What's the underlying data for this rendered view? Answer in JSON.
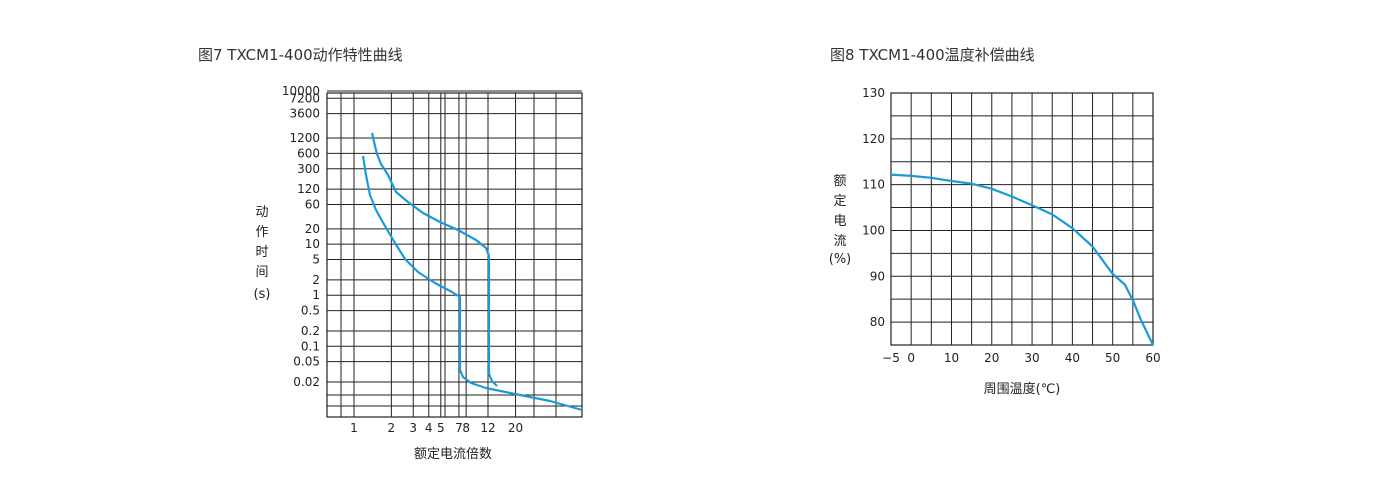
{
  "chart_data": [
    {
      "type": "line",
      "title": "图7 TXCM1-400动作特性曲线",
      "xlabel": "额定电流倍数",
      "ylabel": [
        "动",
        "作",
        "时",
        "间",
        "(s)"
      ],
      "x_tick_labels": [
        "1",
        "2",
        "3",
        "4",
        "5",
        "7",
        "8",
        "12",
        "20"
      ],
      "y_tick_labels": [
        "10000",
        "7200",
        "3600",
        "1200",
        "600",
        "300",
        "120",
        "60",
        "20",
        "10",
        "5",
        "2",
        "1",
        "0.5",
        "0.2",
        "0.1",
        "0.05",
        "0.02"
      ],
      "grid": true,
      "series": [
        {
          "points": [
            [
              1.5,
              650
            ],
            [
              2,
              100
            ],
            [
              3,
              25
            ],
            [
              4,
              8
            ],
            [
              5,
              4
            ],
            [
              7,
              2
            ],
            [
              8,
              1.4
            ],
            [
              8,
              0.04
            ],
            [
              9,
              0.022
            ],
            [
              12,
              0.018
            ],
            [
              30,
              0.002
            ]
          ]
        },
        {
          "points": [
            [
              2,
              2000
            ],
            [
              2.5,
              700
            ],
            [
              3,
              300
            ],
            [
              4,
              100
            ],
            [
              6,
              50
            ],
            [
              9,
              30
            ],
            [
              11,
              20
            ],
            [
              12,
              10
            ],
            [
              12,
              0.04
            ],
            [
              13,
              0.022
            ]
          ]
        }
      ]
    },
    {
      "type": "line",
      "title": "图8 TXCM1-400温度补偿曲线",
      "xlabel": "周围温度(℃)",
      "ylabel": [
        "额",
        "定",
        "电",
        "流",
        "(%)"
      ],
      "x_ticks": [
        -5,
        0,
        10,
        20,
        30,
        40,
        50,
        60
      ],
      "x_tick_labels": [
        "−5",
        "0",
        "10",
        "20",
        "30",
        "40",
        "50",
        "60"
      ],
      "y_ticks": [
        80,
        90,
        100,
        110,
        120,
        130
      ],
      "xlim": [
        -5,
        60
      ],
      "ylim": [
        75,
        130
      ],
      "grid": true,
      "series": [
        {
          "x": [
            -5,
            0,
            5,
            10,
            15,
            20,
            25,
            30,
            35,
            40,
            45,
            50,
            53,
            55,
            57,
            60
          ],
          "y": [
            112.2,
            111.9,
            111.5,
            110.8,
            110.2,
            109.1,
            107.4,
            105.5,
            103.5,
            100.5,
            96.5,
            90.5,
            88.2,
            84.8,
            80.5,
            75.0
          ]
        }
      ]
    }
  ]
}
